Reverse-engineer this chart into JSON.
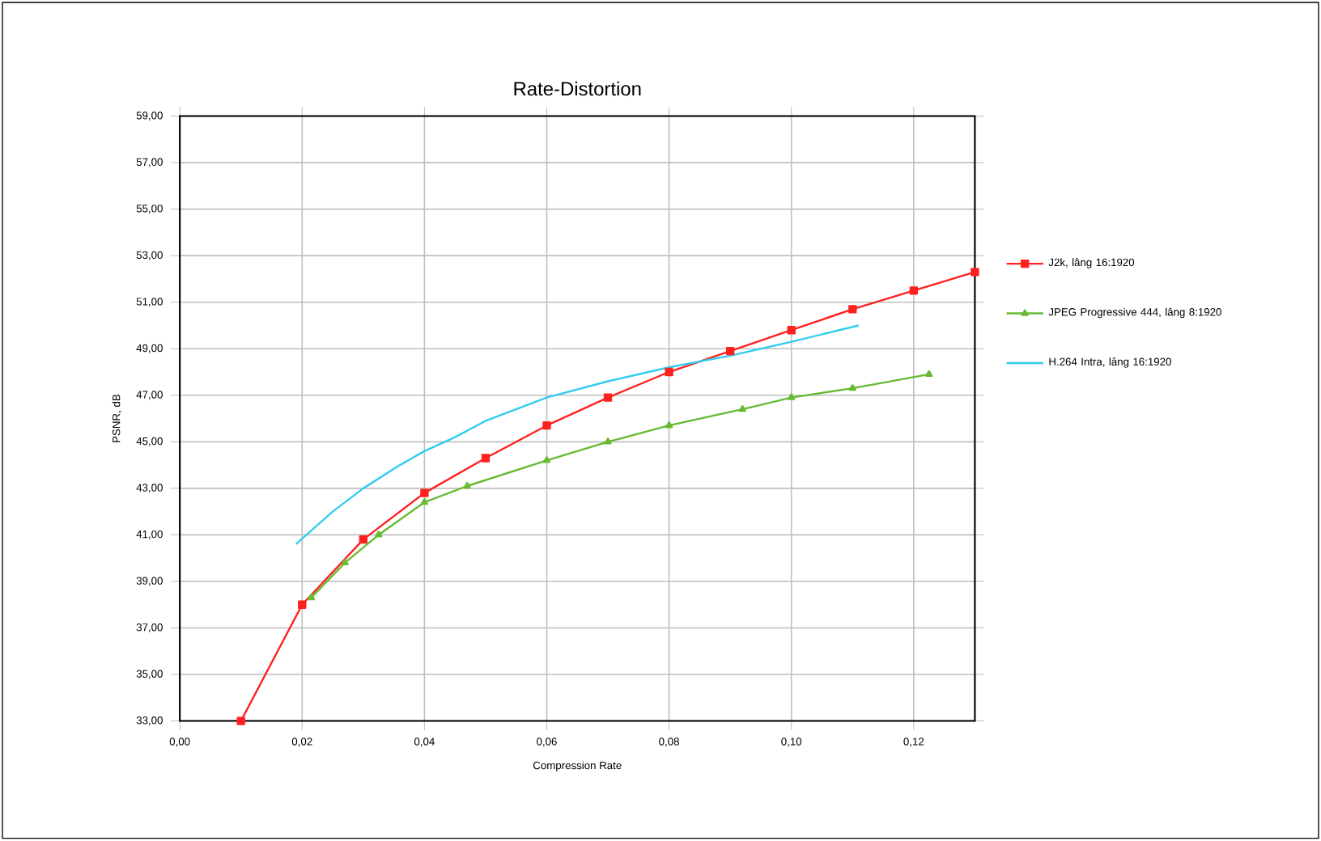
{
  "chart_data": {
    "type": "line",
    "title": "Rate-Distortion",
    "xlabel": "Compression Rate",
    "ylabel": "PSNR, dB",
    "xlim": [
      0,
      0.13
    ],
    "ylim": [
      33,
      59
    ],
    "xticks": [
      {
        "value": 0,
        "label": "0,00"
      },
      {
        "value": 0.02,
        "label": "0,02"
      },
      {
        "value": 0.04,
        "label": "0,04"
      },
      {
        "value": 0.06,
        "label": "0,06"
      },
      {
        "value": 0.08,
        "label": "0,08"
      },
      {
        "value": 0.1,
        "label": "0,10"
      },
      {
        "value": 0.12,
        "label": "0,12"
      }
    ],
    "yticks": [
      {
        "value": 33,
        "label": "33,00"
      },
      {
        "value": 35,
        "label": "35,00"
      },
      {
        "value": 37,
        "label": "37,00"
      },
      {
        "value": 39,
        "label": "39,00"
      },
      {
        "value": 41,
        "label": "41,00"
      },
      {
        "value": 43,
        "label": "43,00"
      },
      {
        "value": 45,
        "label": "45,00"
      },
      {
        "value": 47,
        "label": "47,00"
      },
      {
        "value": 49,
        "label": "49,00"
      },
      {
        "value": 51,
        "label": "51,00"
      },
      {
        "value": 53,
        "label": "53,00"
      },
      {
        "value": 55,
        "label": "55,00"
      },
      {
        "value": 57,
        "label": "57,00"
      },
      {
        "value": 59,
        "label": "59,00"
      }
    ],
    "grid": true,
    "legend": "right",
    "series": [
      {
        "name": "J2k, lâng 16:1920",
        "color": "#ff2020",
        "marker": "square",
        "x": [
          0.01,
          0.02,
          0.03,
          0.04,
          0.05,
          0.06,
          0.07,
          0.08,
          0.09,
          0.1,
          0.11,
          0.12,
          0.13
        ],
        "values": [
          33.0,
          38.0,
          40.8,
          42.8,
          44.3,
          45.7,
          46.9,
          48.0,
          48.9,
          49.8,
          50.7,
          51.5,
          52.3
        ]
      },
      {
        "name": "JPEG Progressive 444, lâng 8:1920",
        "color": "#66bb33",
        "marker": "triangle",
        "x": [
          0.0215,
          0.027,
          0.0325,
          0.04,
          0.047,
          0.06,
          0.07,
          0.08,
          0.092,
          0.1,
          0.11,
          0.1225
        ],
        "values": [
          38.3,
          39.8,
          41.0,
          42.4,
          43.1,
          44.2,
          45.0,
          45.7,
          46.4,
          46.9,
          47.3,
          47.9
        ]
      },
      {
        "name": "H.264 Intra, lâng 16:1920",
        "color": "#33ccf0",
        "marker": "none",
        "x": [
          0.019,
          0.025,
          0.03,
          0.036,
          0.04,
          0.045,
          0.05,
          0.06,
          0.07,
          0.08,
          0.09,
          0.1,
          0.111
        ],
        "values": [
          40.6,
          42.0,
          43.0,
          44.0,
          44.6,
          45.2,
          45.9,
          46.9,
          47.6,
          48.2,
          48.7,
          49.3,
          50.0
        ]
      }
    ]
  }
}
